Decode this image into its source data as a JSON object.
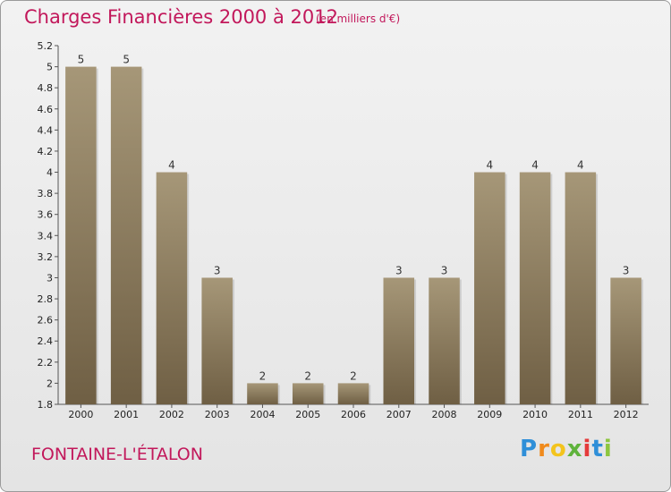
{
  "header": {
    "title": "Charges Financières 2000 à 2012",
    "subtitle": "(en milliers d'€)"
  },
  "footer": {
    "commune": "FONTAINE-L'ÉTALON",
    "logo_text": "Proxiti"
  },
  "colors": {
    "title": "#c2185b",
    "bar_dark": "#6f5f44",
    "bar_light": "#a69778"
  },
  "chart_data": {
    "type": "bar",
    "title": "Charges Financières 2000 à 2012",
    "subtitle": "(en milliers d'€)",
    "xlabel": "",
    "ylabel": "",
    "categories": [
      "2000",
      "2001",
      "2002",
      "2003",
      "2004",
      "2005",
      "2006",
      "2007",
      "2008",
      "2009",
      "2010",
      "2011",
      "2012"
    ],
    "values": [
      5,
      5,
      4,
      3,
      2,
      2,
      2,
      3,
      3,
      4,
      4,
      4,
      3
    ],
    "data_labels": [
      "5",
      "5",
      "4",
      "3",
      "2",
      "2",
      "2",
      "3",
      "3",
      "4",
      "4",
      "4",
      "3"
    ],
    "ylim": [
      1.8,
      5.2
    ],
    "yticks": [
      "1.8",
      "2",
      "2.2",
      "2.4",
      "2.6",
      "2.8",
      "3",
      "3.2",
      "3.4",
      "3.6",
      "3.8",
      "4",
      "4.2",
      "4.4",
      "4.6",
      "4.8",
      "5",
      "5.2"
    ],
    "grid": false,
    "legend": "none"
  }
}
